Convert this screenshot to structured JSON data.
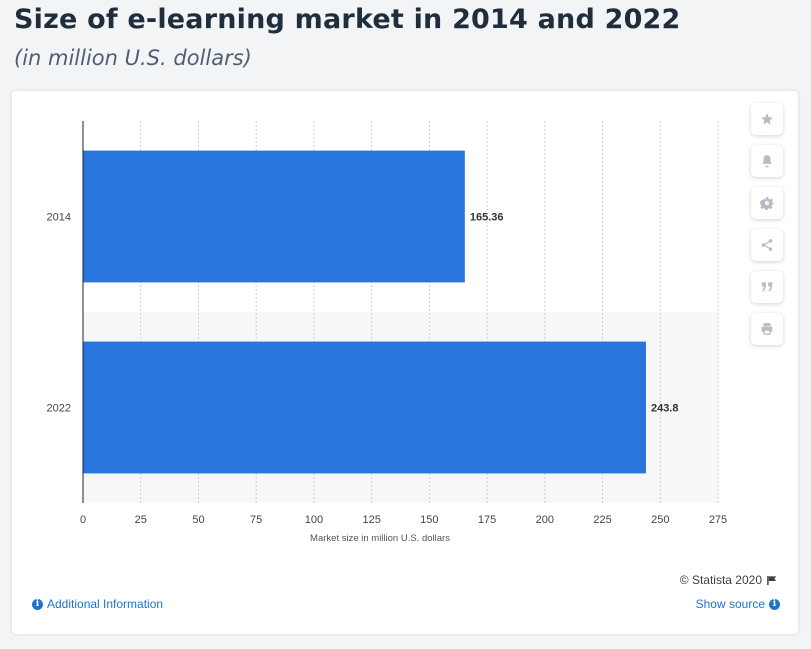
{
  "header": {
    "title": "Size of e-learning market in 2014 and 2022",
    "subtitle": "(in million U.S. dollars)"
  },
  "chart_data": {
    "type": "bar",
    "orientation": "horizontal",
    "categories": [
      "2014",
      "2022"
    ],
    "values": [
      165.36,
      243.8
    ],
    "data_labels": [
      "165.36",
      "243.8"
    ],
    "xlabel": "Market size in million U.S. dollars",
    "xlim": [
      0,
      275
    ],
    "xticks": [
      0,
      25,
      50,
      75,
      100,
      125,
      150,
      175,
      200,
      225,
      250,
      275
    ],
    "grid": true,
    "bar_color": "#2876dd"
  },
  "toolbar": {
    "icons": [
      "star-icon",
      "bell-icon",
      "gear-icon",
      "share-icon",
      "quote-icon",
      "print-icon"
    ]
  },
  "footer": {
    "credit": "© Statista 2020",
    "additional_info": "Additional Information",
    "show_source": "Show source"
  },
  "colors": {
    "link": "#2173c9",
    "bar": "#2876dd",
    "title": "#1f2d3d"
  }
}
